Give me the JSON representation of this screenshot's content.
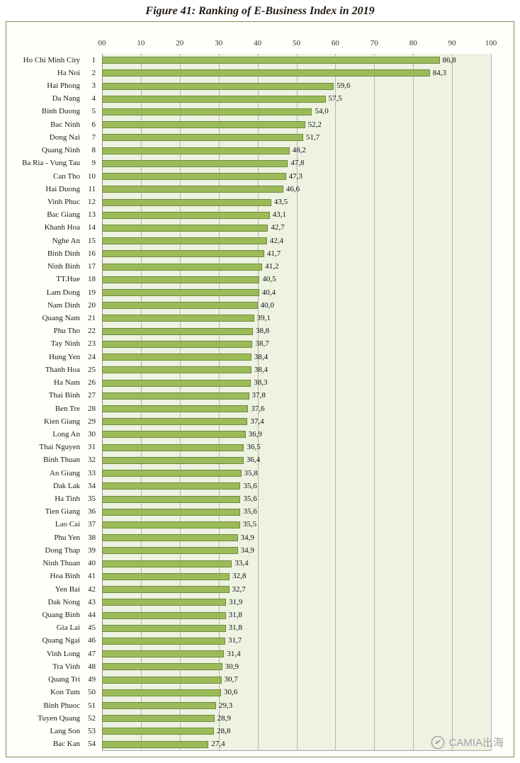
{
  "title": "Figure 41: Ranking of E-Business Index in 2019",
  "watermark": {
    "text": "CAMIA出海",
    "icon": "camia-logo-circle-bird"
  },
  "colors": {
    "bar_fill": "#9bbb59",
    "bar_border": "#71893f",
    "plot_bg": "#edf2e1",
    "grid": "#b5b5b5",
    "frame_border": "#7e8f4c"
  },
  "chart_data": {
    "type": "bar",
    "orientation": "horizontal",
    "title": "Figure 41: Ranking of E-Business Index in 2019",
    "xlabel": "",
    "ylabel": "",
    "xlim": [
      0,
      100
    ],
    "x_ticks": [
      "00",
      "10",
      "20",
      "30",
      "40",
      "50",
      "60",
      "70",
      "80",
      "90",
      "100"
    ],
    "grid": true,
    "decimal_separator": ",",
    "rows": [
      {
        "rank": 1,
        "name": "Ho Chi Minh City",
        "value": 86.8
      },
      {
        "rank": 2,
        "name": "Ha Noi",
        "value": 84.3
      },
      {
        "rank": 3,
        "name": "Hai Phong",
        "value": 59.6
      },
      {
        "rank": 4,
        "name": "Da Nang",
        "value": 57.5
      },
      {
        "rank": 5,
        "name": "Binh Duong",
        "value": 54.0
      },
      {
        "rank": 6,
        "name": "Bac Ninh",
        "value": 52.2
      },
      {
        "rank": 7,
        "name": "Dong Nai",
        "value": 51.7
      },
      {
        "rank": 8,
        "name": "Quang Ninh",
        "value": 48.2
      },
      {
        "rank": 9,
        "name": "Ba Ria - Vung Tau",
        "value": 47.8
      },
      {
        "rank": 10,
        "name": "Can Tho",
        "value": 47.3
      },
      {
        "rank": 11,
        "name": "Hai Duong",
        "value": 46.6
      },
      {
        "rank": 12,
        "name": "Vinh Phuc",
        "value": 43.5
      },
      {
        "rank": 13,
        "name": "Bac Giang",
        "value": 43.1
      },
      {
        "rank": 14,
        "name": "Khanh Hoa",
        "value": 42.7
      },
      {
        "rank": 15,
        "name": "Nghe An",
        "value": 42.4
      },
      {
        "rank": 16,
        "name": "Binh Dinh",
        "value": 41.7
      },
      {
        "rank": 17,
        "name": "Ninh Binh",
        "value": 41.2
      },
      {
        "rank": 18,
        "name": "TT.Hue",
        "value": 40.5
      },
      {
        "rank": 19,
        "name": "Lam Dong",
        "value": 40.4
      },
      {
        "rank": 20,
        "name": "Nam Dinh",
        "value": 40.0
      },
      {
        "rank": 21,
        "name": "Quang Nam",
        "value": 39.1
      },
      {
        "rank": 22,
        "name": "Phu Tho",
        "value": 38.8
      },
      {
        "rank": 23,
        "name": "Tay Ninh",
        "value": 38.7
      },
      {
        "rank": 24,
        "name": "Hung Yen",
        "value": 38.4
      },
      {
        "rank": 25,
        "name": "Thanh Hoa",
        "value": 38.4
      },
      {
        "rank": 26,
        "name": "Ha Nam",
        "value": 38.3
      },
      {
        "rank": 27,
        "name": "Thai Binh",
        "value": 37.8
      },
      {
        "rank": 28,
        "name": "Ben Tre",
        "value": 37.6
      },
      {
        "rank": 29,
        "name": "Kien Giang",
        "value": 37.4
      },
      {
        "rank": 30,
        "name": "Long An",
        "value": 36.9
      },
      {
        "rank": 31,
        "name": "Thai Nguyen",
        "value": 36.5
      },
      {
        "rank": 32,
        "name": "Binh Thuan",
        "value": 36.4
      },
      {
        "rank": 33,
        "name": "An Giang",
        "value": 35.8
      },
      {
        "rank": 34,
        "name": "Dak Lak",
        "value": 35.6
      },
      {
        "rank": 35,
        "name": "Ha Tinh",
        "value": 35.6
      },
      {
        "rank": 36,
        "name": "Tien Giang",
        "value": 35.6
      },
      {
        "rank": 37,
        "name": "Lao Cai",
        "value": 35.5
      },
      {
        "rank": 38,
        "name": "Phu Yen",
        "value": 34.9
      },
      {
        "rank": 39,
        "name": "Dong Thap",
        "value": 34.9
      },
      {
        "rank": 40,
        "name": "Ninh Thuan",
        "value": 33.4
      },
      {
        "rank": 41,
        "name": "Hoa Binh",
        "value": 32.8
      },
      {
        "rank": 42,
        "name": "Yen Bai",
        "value": 32.7
      },
      {
        "rank": 43,
        "name": "Dak Nong",
        "value": 31.9
      },
      {
        "rank": 44,
        "name": "Quang Binh",
        "value": 31.8
      },
      {
        "rank": 45,
        "name": "Gia Lai",
        "value": 31.8
      },
      {
        "rank": 46,
        "name": "Quang Ngai",
        "value": 31.7
      },
      {
        "rank": 47,
        "name": "Vinh Long",
        "value": 31.4
      },
      {
        "rank": 48,
        "name": "Tra Vinh",
        "value": 30.9
      },
      {
        "rank": 49,
        "name": "Quang Tri",
        "value": 30.7
      },
      {
        "rank": 50,
        "name": "Kon Tum",
        "value": 30.6
      },
      {
        "rank": 51,
        "name": "Binh Phuoc",
        "value": 29.3
      },
      {
        "rank": 52,
        "name": "Tuyen Quang",
        "value": 28.9
      },
      {
        "rank": 53,
        "name": "Lang Son",
        "value": 28.8
      },
      {
        "rank": 54,
        "name": "Bac Kan",
        "value": 27.4
      }
    ]
  }
}
